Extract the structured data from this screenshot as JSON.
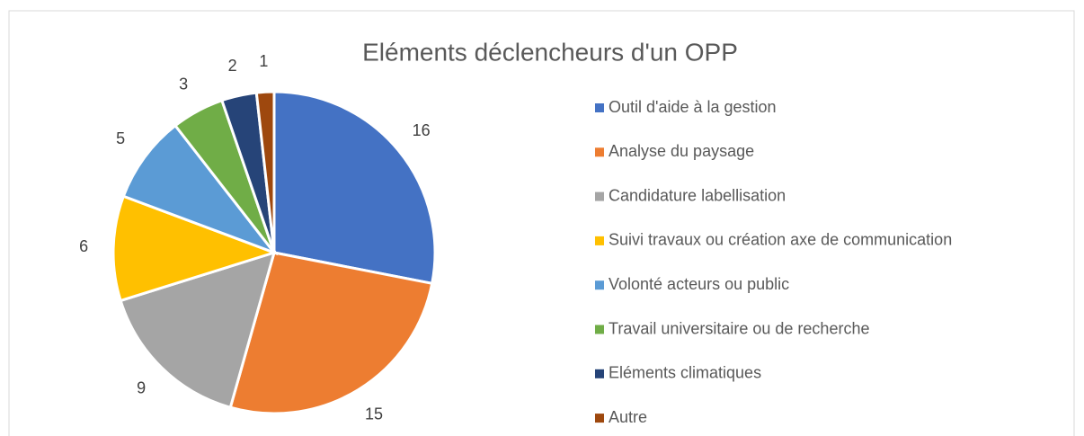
{
  "chart_data": {
    "type": "pie",
    "title": "Eléments déclencheurs d'un OPP",
    "categories": [
      "Outil d'aide à la gestion",
      "Analyse du paysage",
      "Candidature labellisation",
      "Suivi travaux ou création axe de communication",
      "Volonté acteurs ou public",
      "Travail universitaire ou de recherche",
      "Eléments climatiques",
      "Autre"
    ],
    "values": [
      16,
      15,
      9,
      6,
      5,
      3,
      2,
      1
    ],
    "colors": [
      "#4472c4",
      "#ed7d31",
      "#a5a5a5",
      "#ffc000",
      "#5b9bd5",
      "#70ad47",
      "#264478",
      "#9e480e"
    ],
    "legend": "right"
  }
}
